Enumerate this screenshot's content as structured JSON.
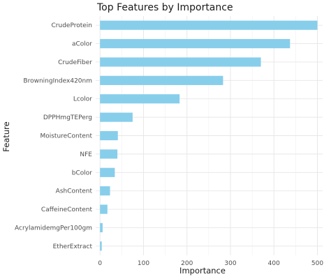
{
  "chart_data": {
    "type": "bar",
    "orientation": "horizontal",
    "title": "Top Features by Importance",
    "xlabel": "Importance",
    "ylabel": "Feature",
    "categories": [
      "CrudeProtein",
      "aColor",
      "CrudeFiber",
      "BrowningIndex420nm",
      "Lcolor",
      "DPPHmgTEPerg",
      "MoistureContent",
      "NFE",
      "bColor",
      "AshContent",
      "CaffeineContent",
      "AcrylamidemgPer100gm",
      "EtherExtract"
    ],
    "values": [
      500,
      437,
      370,
      283,
      183,
      75,
      41,
      40,
      34,
      23,
      17,
      6,
      4
    ],
    "xlim": [
      -10,
      512
    ],
    "xticks": [
      0,
      100,
      200,
      300,
      400,
      500
    ],
    "grid": true,
    "legend": "none",
    "bar_color": "#87ceeb",
    "background_color": "#ffffff",
    "grid_color": "#e6e6e6"
  }
}
